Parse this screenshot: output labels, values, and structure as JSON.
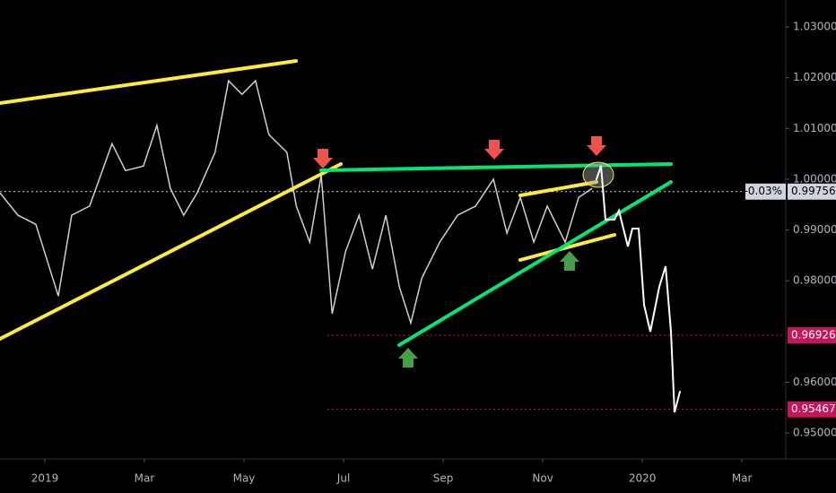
{
  "chart_data": {
    "type": "line",
    "color": "#d0d0d0",
    "x": [
      -0.9,
      -0.54,
      -0.18,
      0.27,
      0.54,
      0.9,
      1.35,
      1.62,
      1.98,
      2.25,
      2.52,
      2.79,
      3.06,
      3.42,
      3.69,
      3.96,
      4.23,
      4.5,
      4.86,
      5.05,
      5.32,
      5.55,
      5.77,
      6.04,
      6.31,
      6.58,
      6.85,
      7.12,
      7.35,
      7.57,
      7.93,
      8.29,
      8.65,
      9.01,
      9.28,
      9.55,
      9.82,
      10.09,
      10.45,
      10.72,
      10.99
    ],
    "values": [
      0.9973,
      0.9929,
      0.9911,
      0.977,
      0.9929,
      0.9947,
      1.007,
      1.0017,
      1.0026,
      1.0106,
      0.9982,
      0.9929,
      0.9973,
      1.0053,
      1.0194,
      1.0167,
      1.0194,
      1.0088,
      1.0053,
      0.9947,
      0.9876,
      1.0008,
      0.9735,
      0.9858,
      0.9929,
      0.9823,
      0.9929,
      0.9788,
      0.9717,
      0.9805,
      0.9876,
      0.9929,
      0.9947,
      1.0,
      0.9894,
      0.9964,
      0.9876,
      0.9947,
      0.9876,
      0.9964,
      0.9982
    ],
    "xlim": [
      -0.9,
      14.88
    ],
    "xticks": [
      {
        "value": 0,
        "label": "2019"
      },
      {
        "value": 2,
        "label": "Mar"
      },
      {
        "value": 4,
        "label": "May"
      },
      {
        "value": 6,
        "label": "Jul"
      },
      {
        "value": 8,
        "label": "Sep"
      },
      {
        "value": 10,
        "label": "Nov"
      },
      {
        "value": 12,
        "label": "2020"
      },
      {
        "value": 14,
        "label": "Mar"
      }
    ],
    "ylim": [
      0.9449,
      1.0353
    ],
    "yticks": [
      {
        "value": 1.03,
        "label": "1.03000"
      },
      {
        "value": 1.02,
        "label": "1.02000"
      },
      {
        "value": 1.01,
        "label": "1.01000"
      },
      {
        "value": 1.0,
        "label": "1.00000"
      },
      {
        "value": 0.99,
        "label": "0.99000"
      },
      {
        "value": 0.98,
        "label": "0.98000"
      },
      {
        "value": 0.96,
        "label": "0.96000"
      },
      {
        "value": 0.95,
        "label": "0.95000"
      }
    ],
    "grid": false,
    "price_lines": [
      {
        "value": 0.99756,
        "label": "0.99756",
        "change": "-0.03%",
        "color": "#d1d4dc"
      },
      {
        "value": 0.96926,
        "label": "0.96926",
        "color": "#c2185b"
      },
      {
        "value": 0.95467,
        "label": "0.95467",
        "color": "#c2185b"
      }
    ]
  }
}
